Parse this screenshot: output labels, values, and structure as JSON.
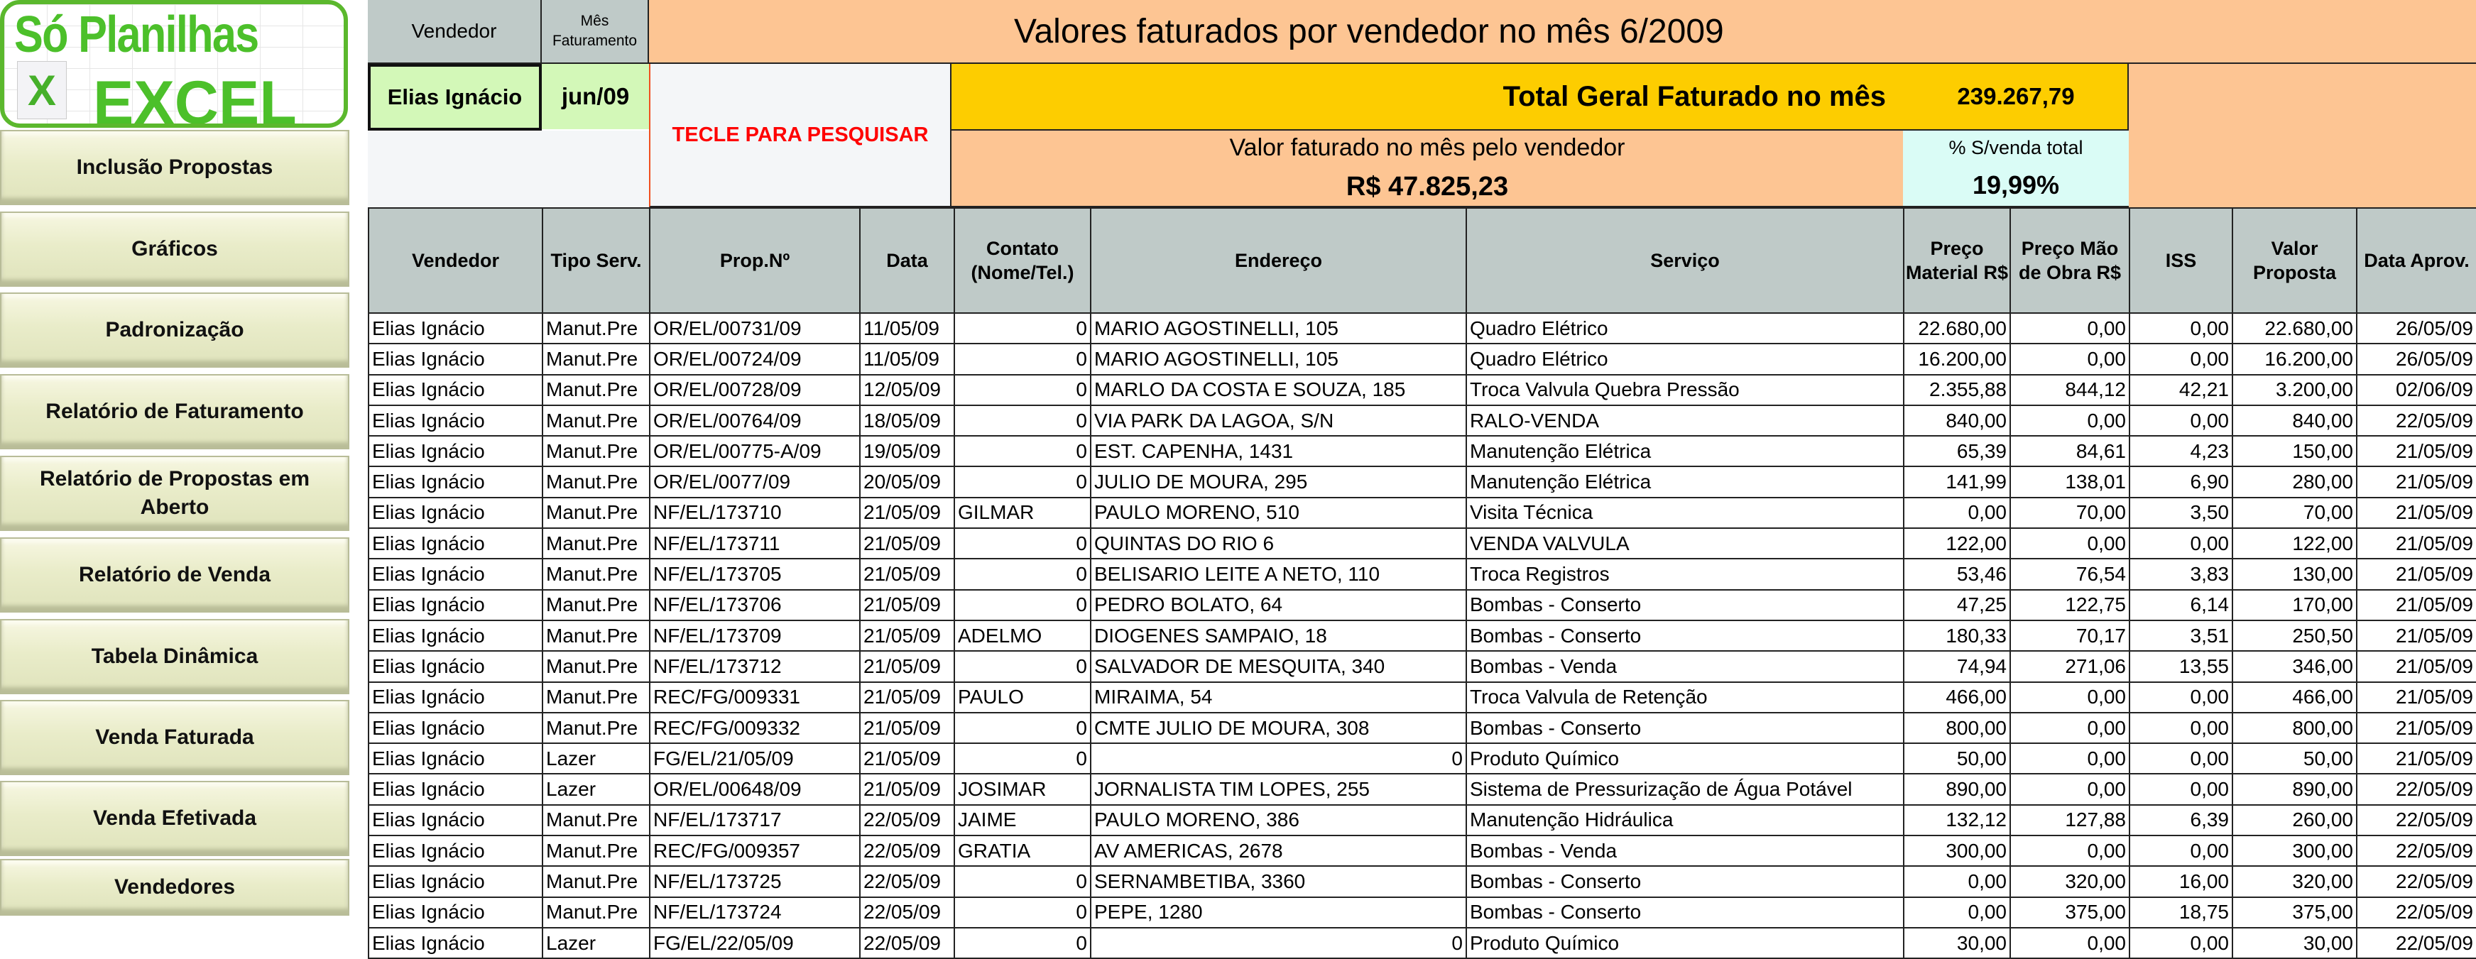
{
  "logo": {
    "line1": "Só Planilhas",
    "line2": "EXCEL",
    "icon": "excel-x-icon"
  },
  "sidebar": {
    "buttons": [
      "Inclusão Propostas",
      "Gráficos",
      "Padronização",
      "Relatório de Faturamento",
      "Relatório de Propostas em Aberto",
      "Relatório de Venda",
      "Tabela Dinâmica",
      "Venda Faturada",
      "Venda Efetivada",
      "Vendedores"
    ]
  },
  "filter": {
    "vendedor_label": "Vendedor",
    "mes_label": "Mês Faturamento",
    "vendedor_value": "Elias Ignácio",
    "mes_value": "jun/09",
    "search_hint": "TECLE PARA PESQUISAR"
  },
  "summary": {
    "title": "Valores faturados por vendedor no mês 6/2009",
    "total_label": "Total Geral Faturado no mês",
    "total_value": "239.267,79",
    "vendor_label": "Valor faturado no mês pelo vendedor",
    "vendor_value": "R$ 47.825,23",
    "pct_label": "% S/venda total",
    "pct_value": "19,99%"
  },
  "colors": {
    "header_gray": "#bfcac8",
    "orange": "#fdc593",
    "yellow": "#fdcd00",
    "green": "#d3f8b8",
    "cyan": "#dafcf6",
    "hint_red": "#ff0000"
  },
  "table": {
    "columns": [
      "Vendedor",
      "Tipo Serv.",
      "Prop.Nº",
      "Data",
      "Contato (Nome/Tel.)",
      "Endereço",
      "Serviço",
      "Preço Material R$",
      "Preço Mão de Obra R$",
      "ISS",
      "Valor Proposta",
      "Data Aprov."
    ],
    "rows": [
      [
        "Elias Ignácio",
        "Manut.Pre",
        "OR/EL/00731/09",
        "11/05/09",
        "0",
        "MARIO AGOSTINELLI, 105",
        "Quadro Elétrico",
        "22.680,00",
        "0,00",
        "0,00",
        "22.680,00",
        "26/05/09"
      ],
      [
        "Elias Ignácio",
        "Manut.Pre",
        "OR/EL/00724/09",
        "11/05/09",
        "0",
        "MARIO AGOSTINELLI, 105",
        "Quadro Elétrico",
        "16.200,00",
        "0,00",
        "0,00",
        "16.200,00",
        "26/05/09"
      ],
      [
        "Elias Ignácio",
        "Manut.Pre",
        "OR/EL/00728/09",
        "12/05/09",
        "0",
        "MARLO DA COSTA E SOUZA, 185",
        "Troca Valvula Quebra Pressão",
        "2.355,88",
        "844,12",
        "42,21",
        "3.200,00",
        "02/06/09"
      ],
      [
        "Elias Ignácio",
        "Manut.Pre",
        "OR/EL/00764/09",
        "18/05/09",
        "0",
        "VIA PARK DA LAGOA, S/N",
        "RALO-VENDA",
        "840,00",
        "0,00",
        "0,00",
        "840,00",
        "22/05/09"
      ],
      [
        "Elias Ignácio",
        "Manut.Pre",
        "OR/EL/00775-A/09",
        "19/05/09",
        "0",
        "EST. CAPENHA, 1431",
        "Manutenção Elétrica",
        "65,39",
        "84,61",
        "4,23",
        "150,00",
        "21/05/09"
      ],
      [
        "Elias Ignácio",
        "Manut.Pre",
        "OR/EL/0077/09",
        "20/05/09",
        "0",
        "JULIO DE MOURA, 295",
        "Manutenção Elétrica",
        "141,99",
        "138,01",
        "6,90",
        "280,00",
        "21/05/09"
      ],
      [
        "Elias Ignácio",
        "Manut.Pre",
        "NF/EL/173710",
        "21/05/09",
        "GILMAR",
        "PAULO MORENO, 510",
        "Visita Técnica",
        "0,00",
        "70,00",
        "3,50",
        "70,00",
        "21/05/09"
      ],
      [
        "Elias Ignácio",
        "Manut.Pre",
        "NF/EL/173711",
        "21/05/09",
        "0",
        "QUINTAS DO RIO 6",
        "VENDA VALVULA",
        "122,00",
        "0,00",
        "0,00",
        "122,00",
        "21/05/09"
      ],
      [
        "Elias Ignácio",
        "Manut.Pre",
        "NF/EL/173705",
        "21/05/09",
        "0",
        "BELISARIO LEITE A NETO, 110",
        "Troca Registros",
        "53,46",
        "76,54",
        "3,83",
        "130,00",
        "21/05/09"
      ],
      [
        "Elias Ignácio",
        "Manut.Pre",
        "NF/EL/173706",
        "21/05/09",
        "0",
        "PEDRO BOLATO, 64",
        "Bombas - Conserto",
        "47,25",
        "122,75",
        "6,14",
        "170,00",
        "21/05/09"
      ],
      [
        "Elias Ignácio",
        "Manut.Pre",
        "NF/EL/173709",
        "21/05/09",
        "ADELMO",
        "DIOGENES SAMPAIO, 18",
        "Bombas - Conserto",
        "180,33",
        "70,17",
        "3,51",
        "250,50",
        "21/05/09"
      ],
      [
        "Elias Ignácio",
        "Manut.Pre",
        "NF/EL/173712",
        "21/05/09",
        "0",
        "SALVADOR DE MESQUITA, 340",
        "Bombas - Venda",
        "74,94",
        "271,06",
        "13,55",
        "346,00",
        "21/05/09"
      ],
      [
        "Elias Ignácio",
        "Manut.Pre",
        "REC/FG/009331",
        "21/05/09",
        "PAULO",
        "MIRAIMA, 54",
        "Troca Valvula de Retenção",
        "466,00",
        "0,00",
        "0,00",
        "466,00",
        "21/05/09"
      ],
      [
        "Elias Ignácio",
        "Manut.Pre",
        "REC/FG/009332",
        "21/05/09",
        "0",
        "CMTE JULIO DE MOURA, 308",
        "Bombas - Conserto",
        "800,00",
        "0,00",
        "0,00",
        "800,00",
        "21/05/09"
      ],
      [
        "Elias Ignácio",
        "Lazer",
        "FG/EL/21/05/09",
        "21/05/09",
        "0",
        "0",
        "Produto Químico",
        "50,00",
        "0,00",
        "0,00",
        "50,00",
        "21/05/09"
      ],
      [
        "Elias Ignácio",
        "Lazer",
        "OR/EL/00648/09",
        "21/05/09",
        "JOSIMAR",
        "JORNALISTA TIM LOPES, 255",
        "Sistema de Pressurização de Água Potável",
        "890,00",
        "0,00",
        "0,00",
        "890,00",
        "22/05/09"
      ],
      [
        "Elias Ignácio",
        "Manut.Pre",
        "NF/EL/173717",
        "22/05/09",
        "JAIME",
        "PAULO MORENO, 386",
        "Manutenção Hidráulica",
        "132,12",
        "127,88",
        "6,39",
        "260,00",
        "22/05/09"
      ],
      [
        "Elias Ignácio",
        "Manut.Pre",
        "REC/FG/009357",
        "22/05/09",
        "GRATIA",
        "AV AMERICAS, 2678",
        "Bombas - Venda",
        "300,00",
        "0,00",
        "0,00",
        "300,00",
        "22/05/09"
      ],
      [
        "Elias Ignácio",
        "Manut.Pre",
        "NF/EL/173725",
        "22/05/09",
        "0",
        "SERNAMBETIBA, 3360",
        "Bombas - Conserto",
        "0,00",
        "320,00",
        "16,00",
        "320,00",
        "22/05/09"
      ],
      [
        "Elias Ignácio",
        "Manut.Pre",
        "NF/EL/173724",
        "22/05/09",
        "0",
        "PEPE, 1280",
        "Bombas - Conserto",
        "0,00",
        "375,00",
        "18,75",
        "375,00",
        "22/05/09"
      ],
      [
        "Elias Ignácio",
        "Lazer",
        "FG/EL/22/05/09",
        "22/05/09",
        "0",
        "0",
        "Produto Químico",
        "30,00",
        "0,00",
        "0,00",
        "30,00",
        "22/05/09"
      ]
    ]
  }
}
